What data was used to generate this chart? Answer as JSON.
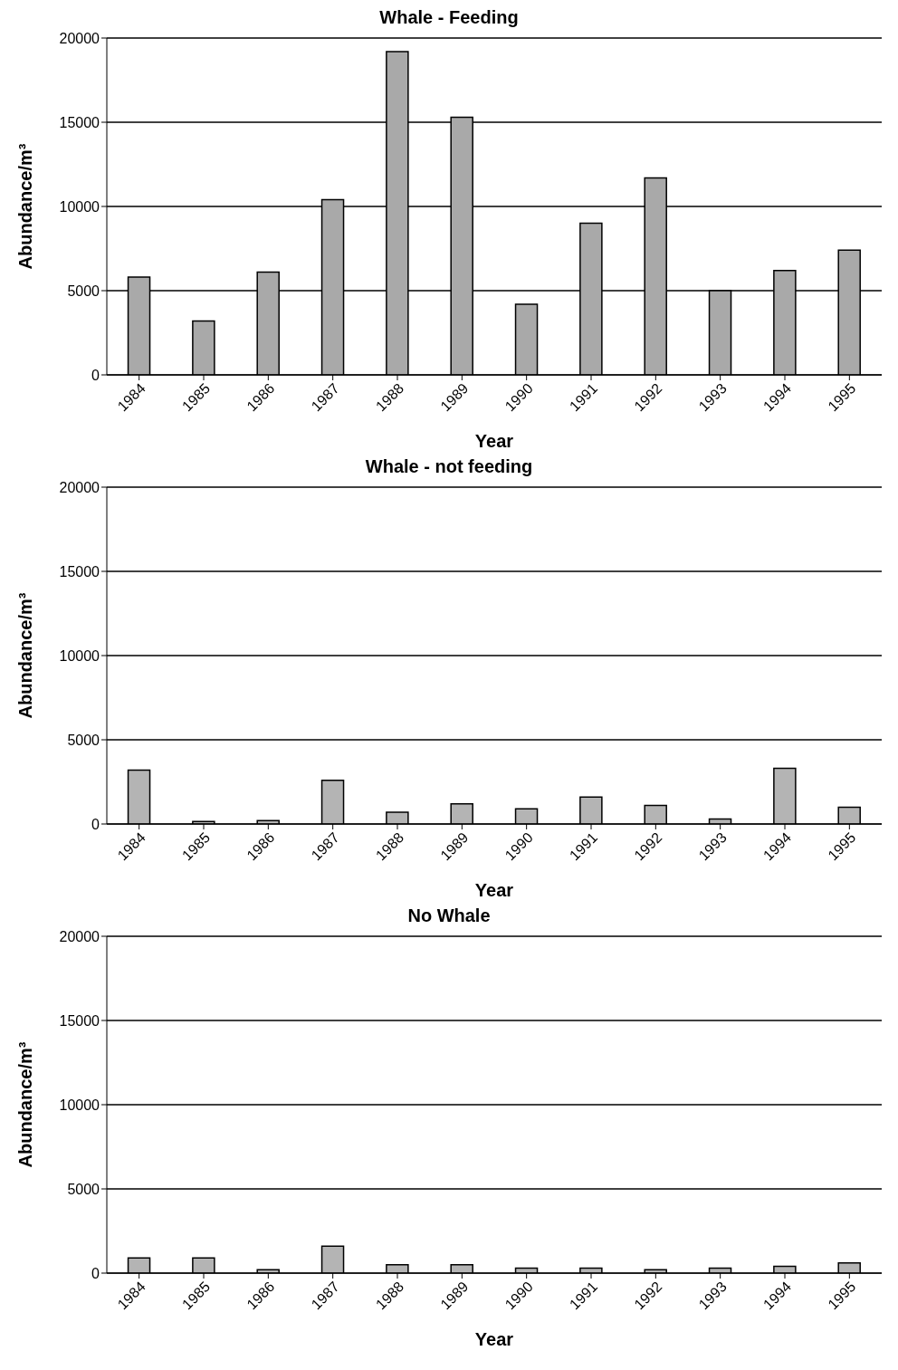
{
  "chart_data": [
    {
      "type": "bar",
      "title": "Whale - Feeding",
      "xlabel": "Year",
      "ylabel": "Abundance/m³",
      "categories": [
        "1984",
        "1985",
        "1986",
        "1987",
        "1988",
        "1989",
        "1990",
        "1991",
        "1992",
        "1993",
        "1994",
        "1995"
      ],
      "values": [
        5800,
        3200,
        6100,
        10400,
        19200,
        15300,
        4200,
        9000,
        11700,
        5000,
        6200,
        7400
      ],
      "color": "#a9a9a9",
      "ylim": [
        0,
        20000
      ],
      "yticks": [
        0,
        5000,
        10000,
        15000,
        20000
      ],
      "grid": "y"
    },
    {
      "type": "bar",
      "title": "Whale - not feeding",
      "xlabel": "Year",
      "ylabel": "Abundance/m³",
      "categories": [
        "1984",
        "1985",
        "1986",
        "1987",
        "1988",
        "1989",
        "1990",
        "1991",
        "1992",
        "1993",
        "1994",
        "1995"
      ],
      "values": [
        3200,
        150,
        200,
        2600,
        700,
        1200,
        900,
        1600,
        1100,
        300,
        3300,
        1000
      ],
      "color": "#b4b4b4",
      "ylim": [
        0,
        20000
      ],
      "yticks": [
        0,
        5000,
        10000,
        15000,
        20000
      ],
      "grid": "y"
    },
    {
      "type": "bar",
      "title": "No Whale",
      "xlabel": "Year",
      "ylabel": "Abundance/m³",
      "categories": [
        "1984",
        "1985",
        "1986",
        "1987",
        "1988",
        "1989",
        "1990",
        "1991",
        "1992",
        "1993",
        "1994",
        "1995"
      ],
      "values": [
        900,
        900,
        200,
        1600,
        500,
        500,
        300,
        300,
        200,
        300,
        400,
        600
      ],
      "color": "#b4b4b4",
      "ylim": [
        0,
        20000
      ],
      "yticks": [
        0,
        5000,
        10000,
        15000,
        20000
      ],
      "grid": "y"
    }
  ]
}
